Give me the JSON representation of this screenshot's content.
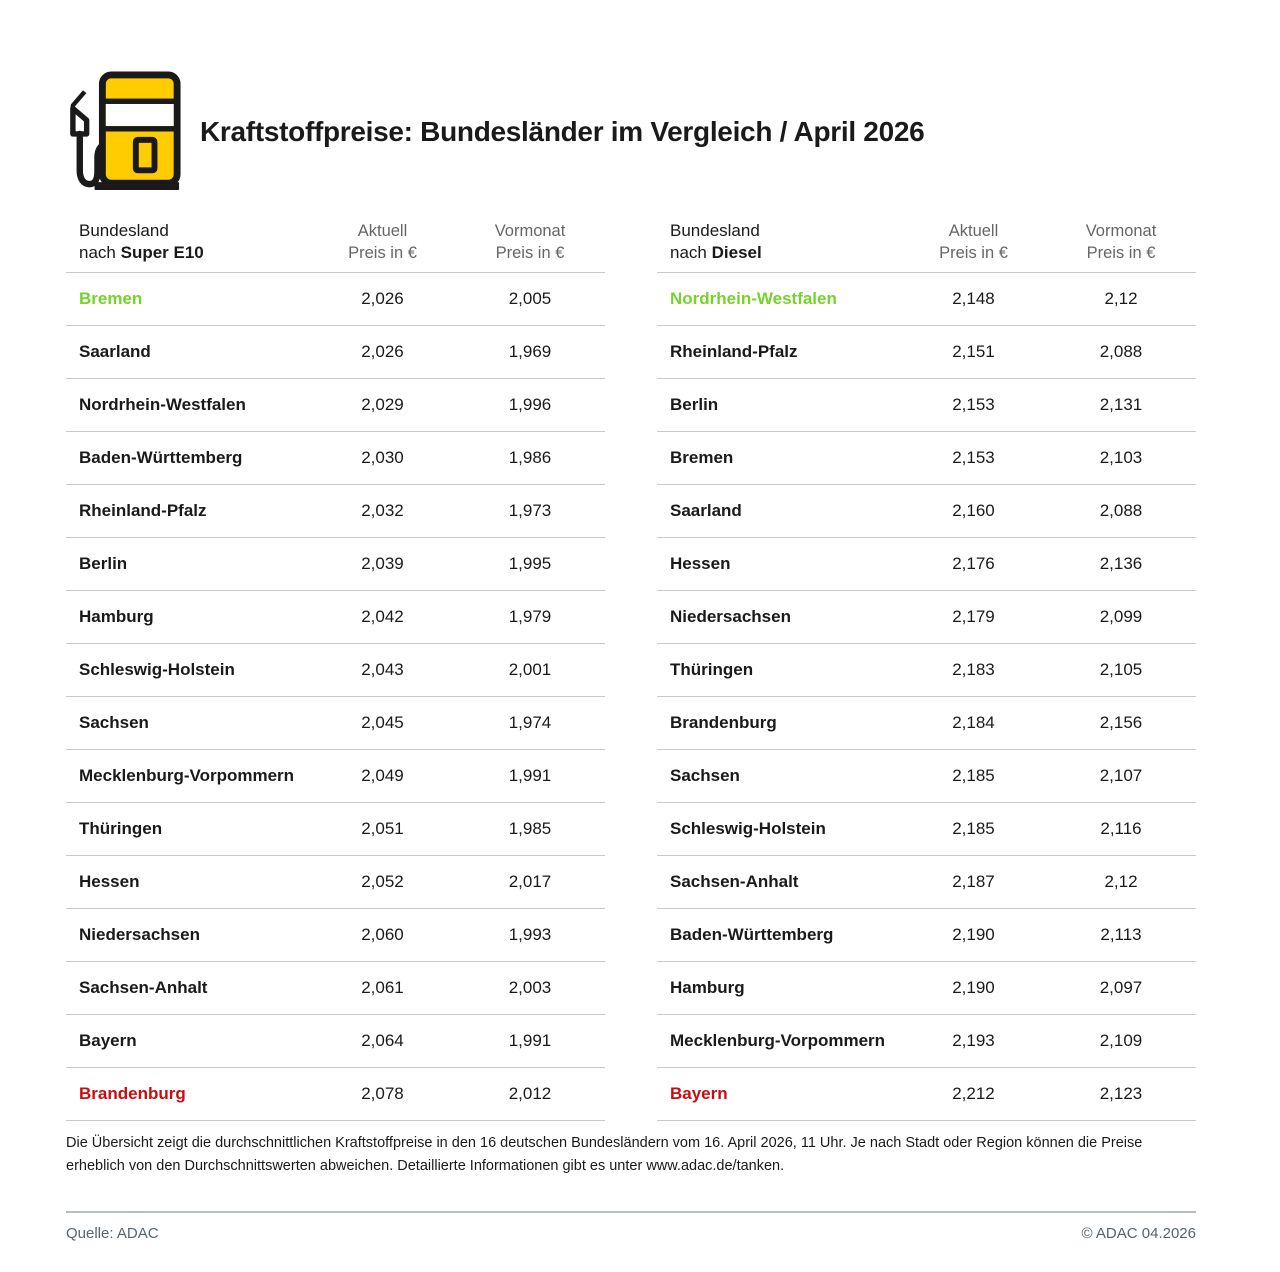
{
  "header": {
    "title": "Kraftstoffpreise: Bundesländer im Vergleich / April 2026"
  },
  "colors": {
    "green": "#77d32b",
    "red": "#c90c0f",
    "yellow": "#ffcc00",
    "outline": "#1a1a1a"
  },
  "tables": [
    {
      "title_line1": "Bundesland",
      "title_prefix": "nach",
      "fuel": "Super E10",
      "col1": "Aktuell",
      "col1_sub": "Preis in €",
      "col2": "Vormonat",
      "col2_sub": "Preis in €",
      "rows": [
        {
          "state": "Bremen",
          "current": "2,026",
          "previous": "2,005",
          "highlight": "green"
        },
        {
          "state": "Saarland",
          "current": "2,026",
          "previous": "1,969",
          "highlight": null
        },
        {
          "state": "Nordrhein-Westfalen",
          "current": "2,029",
          "previous": "1,996",
          "highlight": null
        },
        {
          "state": "Baden-Württemberg",
          "current": "2,030",
          "previous": "1,986",
          "highlight": null
        },
        {
          "state": "Rheinland-Pfalz",
          "current": "2,032",
          "previous": "1,973",
          "highlight": null
        },
        {
          "state": "Berlin",
          "current": "2,039",
          "previous": "1,995",
          "highlight": null
        },
        {
          "state": "Hamburg",
          "current": "2,042",
          "previous": "1,979",
          "highlight": null
        },
        {
          "state": "Schleswig-Holstein",
          "current": "2,043",
          "previous": "2,001",
          "highlight": null
        },
        {
          "state": "Sachsen",
          "current": "2,045",
          "previous": "1,974",
          "highlight": null
        },
        {
          "state": "Mecklenburg-Vorpommern",
          "current": "2,049",
          "previous": "1,991",
          "highlight": null
        },
        {
          "state": "Thüringen",
          "current": "2,051",
          "previous": "1,985",
          "highlight": null
        },
        {
          "state": "Hessen",
          "current": "2,052",
          "previous": "2,017",
          "highlight": null
        },
        {
          "state": "Niedersachsen",
          "current": "2,060",
          "previous": "1,993",
          "highlight": null
        },
        {
          "state": "Sachsen-Anhalt",
          "current": "2,061",
          "previous": "2,003",
          "highlight": null
        },
        {
          "state": "Bayern",
          "current": "2,064",
          "previous": "1,991",
          "highlight": null
        },
        {
          "state": "Brandenburg",
          "current": "2,078",
          "previous": "2,012",
          "highlight": "red"
        }
      ]
    },
    {
      "title_line1": "Bundesland",
      "title_prefix": "nach",
      "fuel": "Diesel",
      "col1": "Aktuell",
      "col1_sub": "Preis in €",
      "col2": "Vormonat",
      "col2_sub": "Preis in €",
      "rows": [
        {
          "state": "Nordrhein-Westfalen",
          "current": "2,148",
          "previous": "2,12",
          "highlight": "green"
        },
        {
          "state": "Rheinland-Pfalz",
          "current": "2,151",
          "previous": "2,088",
          "highlight": null
        },
        {
          "state": "Berlin",
          "current": "2,153",
          "previous": "2,131",
          "highlight": null
        },
        {
          "state": "Bremen",
          "current": "2,153",
          "previous": "2,103",
          "highlight": null
        },
        {
          "state": "Saarland",
          "current": "2,160",
          "previous": "2,088",
          "highlight": null
        },
        {
          "state": "Hessen",
          "current": "2,176",
          "previous": "2,136",
          "highlight": null
        },
        {
          "state": "Niedersachsen",
          "current": "2,179",
          "previous": "2,099",
          "highlight": null
        },
        {
          "state": "Thüringen",
          "current": "2,183",
          "previous": "2,105",
          "highlight": null
        },
        {
          "state": "Brandenburg",
          "current": "2,184",
          "previous": "2,156",
          "highlight": null
        },
        {
          "state": "Sachsen",
          "current": "2,185",
          "previous": "2,107",
          "highlight": null
        },
        {
          "state": "Schleswig-Holstein",
          "current": "2,185",
          "previous": "2,116",
          "highlight": null
        },
        {
          "state": "Sachsen-Anhalt",
          "current": "2,187",
          "previous": "2,12",
          "highlight": null
        },
        {
          "state": "Baden-Württemberg",
          "current": "2,190",
          "previous": "2,113",
          "highlight": null
        },
        {
          "state": "Hamburg",
          "current": "2,190",
          "previous": "2,097",
          "highlight": null
        },
        {
          "state": "Mecklenburg-Vorpommern",
          "current": "2,193",
          "previous": "2,109",
          "highlight": null
        },
        {
          "state": "Bayern",
          "current": "2,212",
          "previous": "2,123",
          "highlight": "red"
        }
      ]
    }
  ],
  "footnote": {
    "text": "Die Übersicht zeigt die durchschnittlichen Kraftstoffpreise in den 16 deutschen Bundesländern vom 16. April 2026, 11 Uhr. Je nach Stadt oder Region können die Preise erheblich von den Durchschnittswerten abweichen. Detaillierte Informationen gibt es unter www.adac.de/tanken."
  },
  "footer": {
    "source": "Quelle: ADAC",
    "copyright": "© ADAC 04.2026"
  },
  "chart_data": [
    {
      "type": "table",
      "title": "Bundesland nach Super E10",
      "columns": [
        "Bundesland",
        "Aktuell Preis in €",
        "Vormonat Preis in €"
      ],
      "rows": [
        [
          "Bremen",
          2.026,
          2.005
        ],
        [
          "Saarland",
          2.026,
          1.969
        ],
        [
          "Nordrhein-Westfalen",
          2.029,
          1.996
        ],
        [
          "Baden-Württemberg",
          2.03,
          1.986
        ],
        [
          "Rheinland-Pfalz",
          2.032,
          1.973
        ],
        [
          "Berlin",
          2.039,
          1.995
        ],
        [
          "Hamburg",
          2.042,
          1.979
        ],
        [
          "Schleswig-Holstein",
          2.043,
          2.001
        ],
        [
          "Sachsen",
          2.045,
          1.974
        ],
        [
          "Mecklenburg-Vorpommern",
          2.049,
          1.991
        ],
        [
          "Thüringen",
          2.051,
          1.985
        ],
        [
          "Hessen",
          2.052,
          2.017
        ],
        [
          "Niedersachsen",
          2.06,
          1.993
        ],
        [
          "Sachsen-Anhalt",
          2.061,
          2.003
        ],
        [
          "Bayern",
          2.064,
          1.991
        ],
        [
          "Brandenburg",
          2.078,
          2.012
        ]
      ],
      "annotations": {
        "cheapest_highlight_green": "Bremen",
        "most_expensive_highlight_red": "Brandenburg"
      }
    },
    {
      "type": "table",
      "title": "Bundesland nach Diesel",
      "columns": [
        "Bundesland",
        "Aktuell Preis in €",
        "Vormonat Preis in €"
      ],
      "rows": [
        [
          "Nordrhein-Westfalen",
          2.148,
          2.12
        ],
        [
          "Rheinland-Pfalz",
          2.151,
          2.088
        ],
        [
          "Berlin",
          2.153,
          2.131
        ],
        [
          "Bremen",
          2.153,
          2.103
        ],
        [
          "Saarland",
          2.16,
          2.088
        ],
        [
          "Hessen",
          2.176,
          2.136
        ],
        [
          "Niedersachsen",
          2.179,
          2.099
        ],
        [
          "Thüringen",
          2.183,
          2.105
        ],
        [
          "Brandenburg",
          2.184,
          2.156
        ],
        [
          "Sachsen",
          2.185,
          2.107
        ],
        [
          "Schleswig-Holstein",
          2.185,
          2.116
        ],
        [
          "Sachsen-Anhalt",
          2.187,
          2.12
        ],
        [
          "Baden-Württemberg",
          2.19,
          2.113
        ],
        [
          "Hamburg",
          2.19,
          2.097
        ],
        [
          "Mecklenburg-Vorpommern",
          2.193,
          2.109
        ],
        [
          "Bayern",
          2.212,
          2.123
        ]
      ],
      "annotations": {
        "cheapest_highlight_green": "Nordrhein-Westfalen",
        "most_expensive_highlight_red": "Bayern"
      }
    }
  ]
}
